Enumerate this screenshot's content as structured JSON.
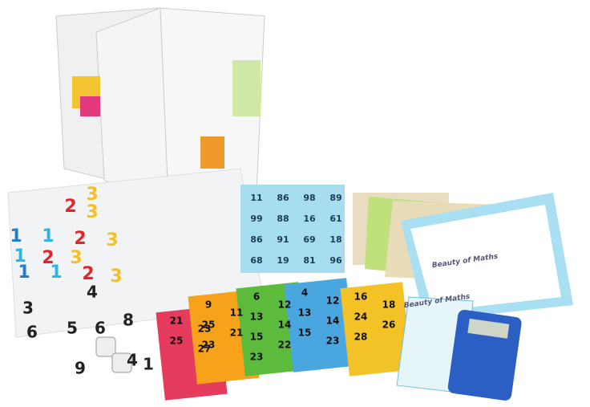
{
  "magic_square": {
    "rows": [
      [
        "11",
        "86",
        "98",
        "89"
      ],
      [
        "99",
        "88",
        "16",
        "61"
      ],
      [
        "86",
        "91",
        "69",
        "18"
      ],
      [
        "68",
        "19",
        "81",
        "96"
      ]
    ]
  },
  "digit_cards": {
    "items": [
      "3",
      "2",
      "3",
      "1",
      "1",
      "2",
      "3",
      "1",
      "2",
      "3",
      "1",
      "1",
      "2",
      "3"
    ]
  },
  "black_cards": {
    "items": [
      "3",
      "4",
      "6",
      "5",
      "6",
      "8",
      "9",
      "4",
      "1"
    ]
  },
  "zigzag_cards": [
    {
      "numbers": [
        "21",
        "23",
        "25",
        "27"
      ]
    },
    {
      "numbers": [
        "9",
        "11",
        "25",
        "21",
        "23"
      ]
    },
    {
      "numbers": [
        "6",
        "12",
        "13",
        "14",
        "15",
        "22",
        "23"
      ]
    },
    {
      "numbers": [
        "4",
        "12",
        "13",
        "14",
        "15",
        "23"
      ]
    },
    {
      "numbers": [
        "16",
        "18",
        "24",
        "26",
        "28"
      ]
    }
  ],
  "certificates": {
    "items": [
      "Beauty of Maths",
      "Beauty of Maths"
    ]
  }
}
